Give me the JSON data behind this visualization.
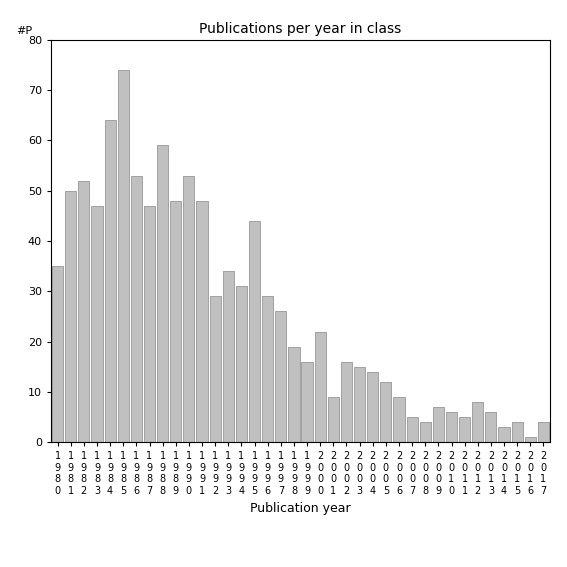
{
  "title": "Publications per year in class",
  "xlabel": "Publication year",
  "ylim": [
    0,
    80
  ],
  "yticks": [
    0,
    10,
    20,
    30,
    40,
    50,
    60,
    70,
    80
  ],
  "bar_color": "#c0c0c0",
  "bar_edgecolor": "#888888",
  "categories": [
    "1980",
    "1981",
    "1982",
    "1983",
    "1984",
    "1985",
    "1986",
    "1987",
    "1988",
    "1989",
    "1990",
    "1991",
    "1992",
    "1993",
    "1994",
    "1995",
    "1996",
    "1997",
    "1998",
    "1999",
    "2000",
    "2001",
    "2002",
    "2003",
    "2004",
    "2005",
    "2006",
    "2007",
    "2008",
    "2009",
    "2010",
    "2011",
    "2012",
    "2013",
    "2014",
    "2015",
    "2016",
    "2017"
  ],
  "values": [
    35,
    50,
    52,
    47,
    64,
    74,
    53,
    47,
    59,
    48,
    53,
    48,
    29,
    34,
    31,
    44,
    29,
    26,
    19,
    16,
    22,
    9,
    16,
    15,
    14,
    12,
    9,
    5,
    4,
    7,
    6,
    5,
    8,
    6,
    3,
    4,
    1,
    4
  ],
  "ylabel_annotation": "#P",
  "title_fontsize": 10,
  "tick_fontsize": 7,
  "xlabel_fontsize": 9
}
